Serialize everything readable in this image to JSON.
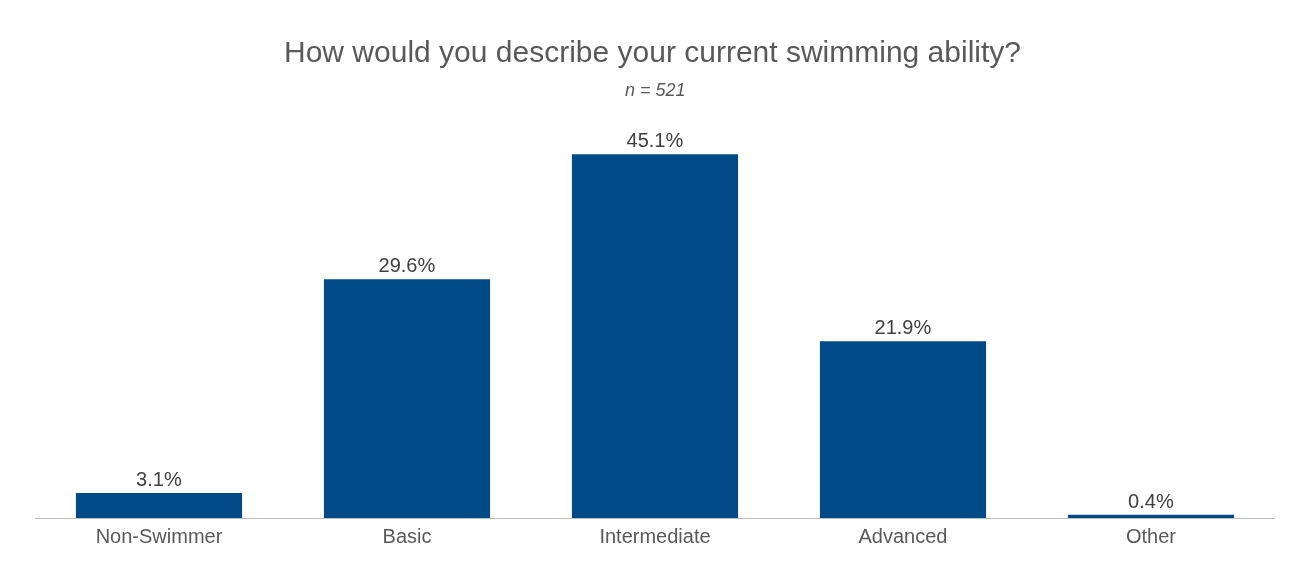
{
  "chart_data": {
    "type": "bar",
    "title": "How would you describe your current swimming ability?",
    "subtitle": "n = 521",
    "categories": [
      "Non-Swimmer",
      "Basic",
      "Intermediate",
      "Advanced",
      "Other"
    ],
    "values": [
      3.1,
      29.6,
      45.1,
      21.9,
      0.4
    ],
    "color": "#004a87",
    "value_labels": [
      "3.1%",
      "29.6%",
      "45.1%",
      "21.9%",
      "0.4%"
    ],
    "legend": false
  }
}
